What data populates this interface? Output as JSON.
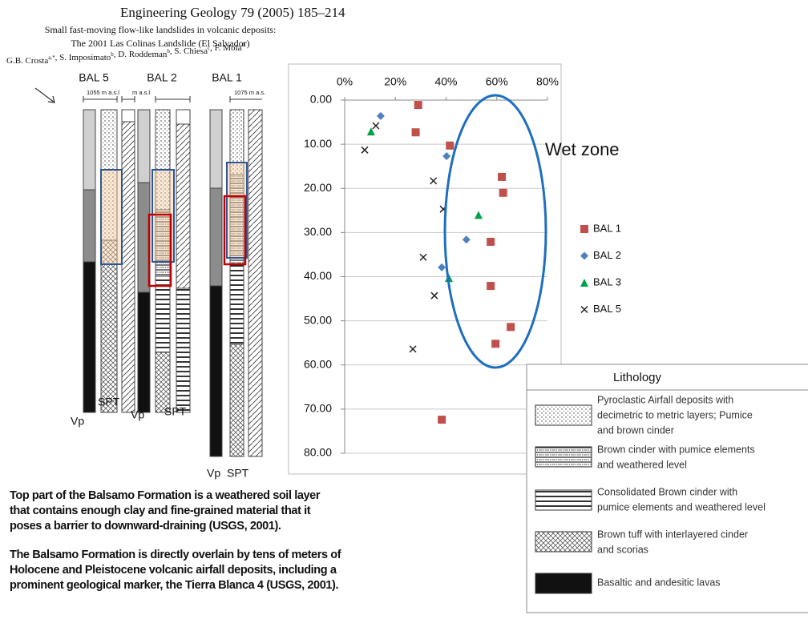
{
  "header": {
    "journal": "Engineering Geology 79 (2005) 185–214",
    "title_line1": "Small fast-moving flow-like landslides in volcanic deposits:",
    "title_line2": "The 2001 Las Colinas Landslide (El Salvador)",
    "separator": ", ",
    "authors": [
      {
        "name": "G.B. Crosta",
        "sup": "a,*"
      },
      {
        "name": "S. Imposimato",
        "sup": "b"
      },
      {
        "name": "D. Roddeman",
        "sup": "b"
      },
      {
        "name": "S. Chiesa",
        "sup": "c"
      },
      {
        "name": "F. Moia",
        "sup": "d"
      }
    ]
  },
  "boreholes": [
    {
      "name": "BAL 5",
      "elevation": "1055 m a.s.l",
      "columns": [
        "Vp",
        "SPT"
      ]
    },
    {
      "name": "BAL 2",
      "elevation": "m a.s.l",
      "columns": [
        "Vp",
        "SPT"
      ]
    },
    {
      "name": "BAL 1",
      "elevation": "1075 m a.s.",
      "columns": [
        "Vp",
        "SPT"
      ]
    }
  ],
  "chart_data": {
    "type": "scatter",
    "xlim": [
      0,
      80
    ],
    "xticks": [
      {
        "value": 0,
        "label": "0%"
      },
      {
        "value": 20,
        "label": "20%"
      },
      {
        "value": 40,
        "label": "40%"
      },
      {
        "value": 60,
        "label": "60%"
      },
      {
        "value": 80,
        "label": "80%"
      }
    ],
    "x_axis_position": "top",
    "ylim": [
      0,
      80
    ],
    "y_inverted": true,
    "yticks": [
      {
        "value": 0,
        "label": "0.00"
      },
      {
        "value": 10,
        "label": "10.00"
      },
      {
        "value": 20,
        "label": "20.00"
      },
      {
        "value": 30,
        "label": "30.00"
      },
      {
        "value": 40,
        "label": "40.00"
      },
      {
        "value": 50,
        "label": "50.00"
      },
      {
        "value": 60,
        "label": "60.00"
      },
      {
        "value": 70,
        "label": "70.00"
      },
      {
        "value": 80,
        "label": "80.00"
      }
    ],
    "grid": true,
    "legend": "right",
    "annotation": "Wet zone",
    "series": [
      {
        "name": "BAL 1",
        "color": "#c0504d",
        "marker": "square",
        "x": [
          29,
          28,
          41.5,
          62,
          62.5,
          57.6,
          57.6,
          65.5,
          59.5,
          38.3
        ],
        "values": [
          1.1,
          7.3,
          10.3,
          17.4,
          21,
          32.1,
          42.1,
          51.4,
          55.2,
          72.4
        ]
      },
      {
        "name": "BAL 2",
        "color": "#4f81bd",
        "marker": "diamond",
        "x": [
          14.2,
          40.2,
          48,
          38.3
        ],
        "values": [
          3.6,
          12.7,
          31.6,
          37.9
        ]
      },
      {
        "name": "BAL 3",
        "color": "#00a04a",
        "marker": "triangle",
        "x": [
          10.4,
          52.8,
          41.1
        ],
        "values": [
          7.1,
          26,
          40.3
        ]
      },
      {
        "name": "BAL 5",
        "color": "#222222",
        "marker": "x",
        "x": [
          12.3,
          7.9,
          35,
          38.9,
          31,
          35.4,
          26.9
        ],
        "values": [
          5.8,
          11.3,
          18.3,
          24.7,
          35.6,
          44.3,
          56.4
        ]
      }
    ]
  },
  "lithology": {
    "title": "Lithology",
    "items": [
      {
        "lines": [
          "Pyroclastic Airfall deposits with",
          "decimetric to metric layers; Pumice",
          "and brown cinder"
        ]
      },
      {
        "lines": [
          "Brown cinder with pumice elements",
          "and weathered level"
        ]
      },
      {
        "lines": [
          "Consolidated Brown cinder with",
          "pumice elements and weathered level"
        ]
      },
      {
        "lines": [
          "Brown tuff with interlayered cinder",
          "and scorias"
        ]
      },
      {
        "lines": [
          "Basaltic and andesitic lavas"
        ]
      }
    ]
  },
  "text": {
    "paragraphs": [
      [
        "Top part of the  Balsamo Formation is a weathered soil layer",
        "that contains enough clay and fine-grained material that it",
        "poses a barrier to downward-draining (USGS, 2001)."
      ],
      [
        "The Balsamo Formation is directly overlain by tens of meters of",
        "Holocene and Pleistocene volcanic airfall deposits, including a",
        "prominent geological marker, the Tierra Blanca 4 (USGS, 2001)."
      ]
    ]
  }
}
